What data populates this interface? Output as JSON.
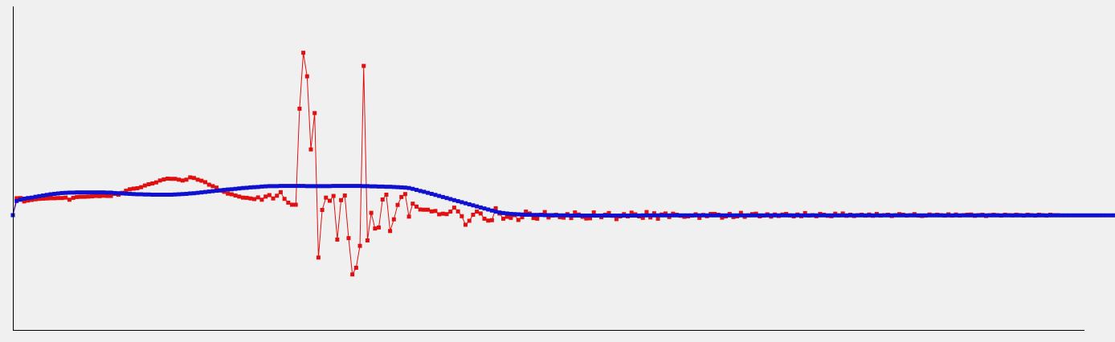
{
  "chart_data": {
    "type": "line",
    "title": "",
    "xlabel": "",
    "ylabel": "",
    "grid": false,
    "legend": "none",
    "xlim": [
      0,
      283
    ],
    "ylim": [
      -0.55,
      1.0
    ],
    "series": [
      {
        "color": "#e01010",
        "marker": "square",
        "values": [
          0.0,
          0.081,
          0.082,
          0.066,
          0.07,
          0.073,
          0.076,
          0.078,
          0.079,
          0.08,
          0.081,
          0.081,
          0.082,
          0.082,
          0.084,
          0.074,
          0.083,
          0.087,
          0.088,
          0.088,
          0.089,
          0.09,
          0.092,
          0.091,
          0.093,
          0.092,
          0.092,
          0.102,
          0.098,
          0.107,
          0.117,
          0.124,
          0.127,
          0.129,
          0.134,
          0.142,
          0.148,
          0.152,
          0.157,
          0.166,
          0.171,
          0.175,
          0.174,
          0.174,
          0.17,
          0.166,
          0.17,
          0.181,
          0.178,
          0.17,
          0.165,
          0.158,
          0.146,
          0.139,
          0.132,
          0.118,
          0.112,
          0.103,
          0.1,
          0.094,
          0.089,
          0.084,
          0.083,
          0.08,
          0.077,
          0.085,
          0.074,
          0.089,
          0.096,
          0.08,
          0.093,
          0.11,
          0.078,
          0.06,
          0.05,
          0.05,
          0.51,
          0.778,
          0.665,
          0.315,
          0.489,
          -0.203,
          0.025,
          0.084,
          0.069,
          0.092,
          -0.117,
          0.072,
          0.094,
          -0.11,
          -0.284,
          -0.252,
          -0.147,
          0.715,
          -0.121,
          0.011,
          -0.064,
          -0.059,
          0.075,
          0.098,
          -0.076,
          -0.02,
          0.049,
          0.087,
          0.101,
          -0.007,
          0.055,
          0.041,
          0.027,
          0.026,
          0.026,
          0.018,
          0.02,
          0.004,
          0.007,
          0.005,
          0.017,
          0.036,
          0.018,
          -0.005,
          -0.046,
          -0.027,
          0.002,
          0.017,
          0.008,
          -0.017,
          -0.026,
          -0.024,
          0.033,
          0.008,
          -0.017,
          -0.008,
          -0.013,
          0.0,
          -0.023,
          -0.01,
          0.017,
          0.008,
          -0.014,
          -0.017,
          0.002,
          0.015,
          -0.011,
          -0.002,
          0.002,
          -0.01,
          -0.012,
          0.005,
          -0.014,
          0.013,
          0.003,
          -0.008,
          -0.016,
          -0.015,
          0.013,
          -0.002,
          -0.01,
          0.002,
          0.01,
          -0.003,
          -0.019,
          -0.006,
          0.005,
          -0.006,
          0.012,
          0.004,
          -0.006,
          -0.013,
          0.015,
          -0.011,
          0.009,
          -0.017,
          0.003,
          0.008,
          -0.009,
          0.007,
          0.002,
          -0.003,
          -0.008,
          -0.006,
          -0.002,
          0.004,
          -0.013,
          0.001,
          -0.005,
          0.006,
          0.006,
          0.002,
          -0.012,
          -0.006,
          0.006,
          -0.009,
          -0.006,
          0.011,
          -0.008,
          -0.001,
          0.005,
          0.007,
          -0.006,
          -0.002,
          0.004,
          -0.007,
          0.003,
          -0.004,
          0.003,
          0.006,
          -0.001,
          -0.006,
          0.003,
          -0.005,
          0.01,
          -0.002,
          0.0,
          -0.005,
          0.006,
          0.002,
          -0.003,
          -0.005,
          0.007,
          -0.001,
          0.008,
          -0.003,
          0.002,
          -0.004,
          0.0,
          0.002,
          -0.002,
          0.003,
          -0.003,
          0.006,
          -0.002,
          0.0,
          0.002,
          -0.004,
          0.0,
          0.005,
          0.002,
          -0.002,
          0.0,
          0.005,
          -0.002,
          -0.004,
          -0.002,
          0.003,
          0.0,
          0.002,
          0.0,
          -0.002,
          0.004,
          -0.002,
          0.003,
          -0.002,
          0.0,
          0.002,
          0.003,
          -0.003,
          0.0,
          0.002,
          -0.004,
          0.0,
          0.002,
          0.0,
          -0.002,
          0.002,
          0.0,
          -0.001,
          0.002,
          0.0,
          -0.002,
          0.002,
          0.0,
          -0.002,
          0.002,
          0.0,
          -0.002,
          0.002,
          0.0,
          0.0
        ]
      },
      {
        "color": "#1010d0",
        "marker": "square",
        "values": [
          0.0,
          0.068,
          0.074,
          0.079,
          0.082,
          0.084,
          0.088,
          0.091,
          0.094,
          0.097,
          0.1,
          0.102,
          0.104,
          0.106,
          0.107,
          0.108,
          0.108,
          0.109,
          0.109,
          0.109,
          0.109,
          0.109,
          0.109,
          0.109,
          0.109,
          0.108,
          0.108,
          0.106,
          0.105,
          0.104,
          0.103,
          0.102,
          0.101,
          0.1,
          0.1,
          0.099,
          0.099,
          0.098,
          0.098,
          0.098,
          0.098,
          0.098,
          0.098,
          0.099,
          0.1,
          0.101,
          0.102,
          0.104,
          0.105,
          0.107,
          0.109,
          0.111,
          0.113,
          0.115,
          0.117,
          0.119,
          0.121,
          0.123,
          0.124,
          0.126,
          0.128,
          0.13,
          0.131,
          0.133,
          0.134,
          0.135,
          0.137,
          0.138,
          0.139,
          0.139,
          0.139,
          0.14,
          0.14,
          0.14,
          0.14,
          0.14,
          0.14,
          0.14,
          0.139,
          0.139,
          0.139,
          0.139,
          0.139,
          0.139,
          0.139,
          0.14,
          0.14,
          0.14,
          0.14,
          0.14,
          0.14,
          0.14,
          0.14,
          0.139,
          0.139,
          0.138,
          0.138,
          0.137,
          0.137,
          0.136,
          0.136,
          0.135,
          0.134,
          0.133,
          0.132,
          0.13,
          0.126,
          0.121,
          0.116,
          0.112,
          0.107,
          0.102,
          0.097,
          0.092,
          0.087,
          0.082,
          0.077,
          0.072,
          0.067,
          0.062,
          0.057,
          0.052,
          0.047,
          0.042,
          0.037,
          0.032,
          0.027,
          0.022,
          0.017,
          0.013,
          0.01,
          0.008,
          0.006,
          0.005,
          0.004,
          0.003,
          0.002,
          0.002,
          0.001,
          0.001,
          0.001,
          0.0,
          0.0,
          0.0,
          -0.001,
          -0.001,
          -0.001,
          -0.001,
          -0.002,
          -0.002,
          -0.002,
          -0.002,
          -0.002,
          -0.002,
          -0.002,
          -0.002,
          -0.002,
          -0.002,
          -0.002,
          -0.002,
          -0.002,
          -0.002,
          -0.002,
          -0.002,
          -0.002,
          -0.002,
          -0.002,
          -0.001,
          -0.001,
          -0.001,
          -0.001,
          -0.001,
          -0.001,
          -0.001,
          -0.001,
          -0.001,
          -0.001,
          -0.001,
          -0.001,
          -0.001,
          -0.001,
          -0.001,
          -0.001,
          -0.001,
          -0.001,
          -0.001,
          -0.001,
          -0.001,
          -0.001,
          -0.001,
          -0.001,
          -0.001,
          -0.001,
          -0.001,
          -0.001,
          -0.001,
          -0.001,
          -0.001,
          -0.001,
          -0.001,
          -0.001,
          -0.001,
          -0.001,
          -0.001,
          -0.001,
          -0.001,
          -0.001,
          -0.001,
          -0.001,
          -0.001,
          -0.001,
          -0.001,
          -0.001,
          -0.001,
          -0.001,
          -0.001,
          -0.001,
          -0.001,
          -0.001,
          -0.001,
          -0.001,
          -0.001,
          -0.001,
          -0.001,
          -0.001,
          -0.001,
          -0.001,
          -0.001,
          -0.001,
          -0.001,
          -0.001,
          -0.001,
          -0.001,
          -0.001,
          -0.001,
          -0.001,
          -0.001,
          -0.001,
          -0.001,
          -0.001,
          -0.001,
          -0.001,
          -0.001,
          -0.001,
          -0.001,
          -0.001,
          -0.001,
          -0.001,
          -0.001,
          -0.001,
          -0.001,
          -0.001,
          -0.001,
          -0.001,
          -0.001,
          -0.001,
          -0.001,
          -0.001,
          -0.001,
          -0.001,
          -0.001,
          -0.001,
          -0.001,
          -0.001,
          -0.001,
          -0.001,
          -0.001,
          -0.001,
          -0.001,
          -0.001,
          -0.001,
          -0.001,
          -0.001,
          -0.001,
          -0.001,
          -0.001,
          -0.001,
          -0.001,
          -0.001,
          -0.001,
          -0.001,
          -0.001,
          -0.001,
          -0.001,
          -0.001,
          -0.001,
          -0.001,
          -0.001,
          -0.001,
          -0.001,
          -0.001,
          -0.001,
          -0.001
        ]
      }
    ]
  }
}
